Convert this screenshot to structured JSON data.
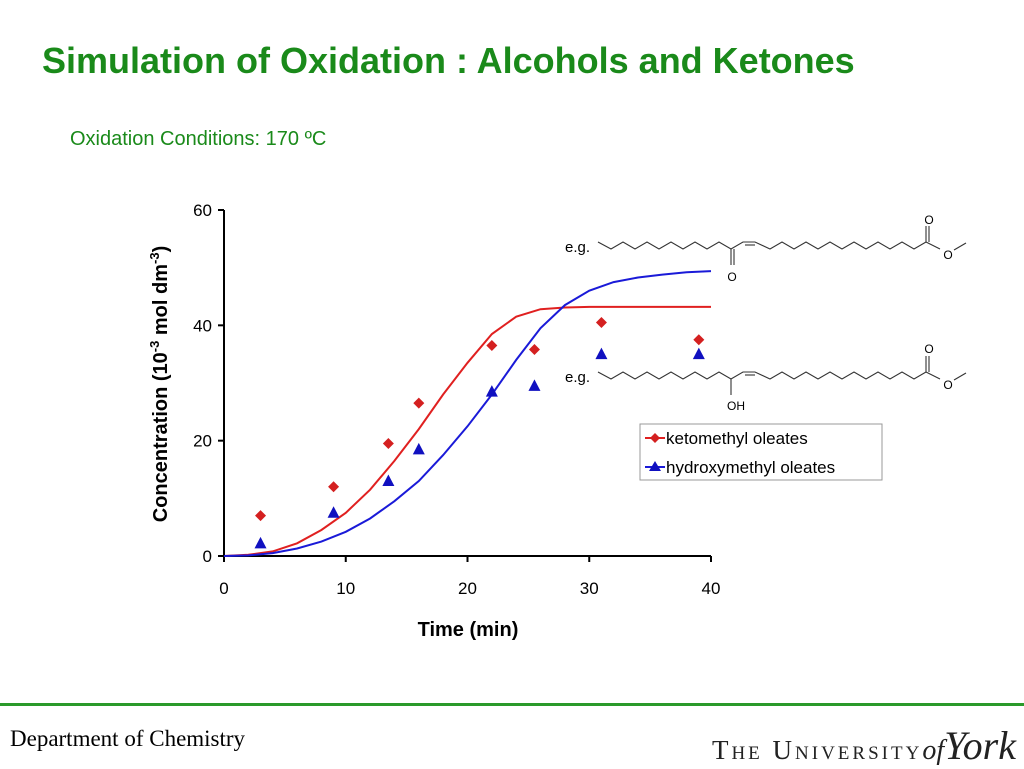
{
  "title": "Simulation of Oxidation : Alcohols and Ketones",
  "subtitle": "Oxidation Conditions: 170 ºC",
  "footer": {
    "department": "Department of Chemistry",
    "university_main": "The University",
    "university_of": "of",
    "university_york": "York"
  },
  "chart_data": {
    "type": "scatter",
    "xlabel": "Time (min)",
    "ylabel": {
      "base": "Concentration (10",
      "exp1": "-3",
      "mid": " mol dm",
      "exp2": "-3",
      "end": ")"
    },
    "xlim": [
      0,
      40
    ],
    "ylim": [
      0,
      60
    ],
    "xticks": [
      0,
      10,
      20,
      30,
      40
    ],
    "yticks": [
      0,
      20,
      40,
      60
    ],
    "grid": false,
    "legend_position": "right",
    "series": [
      {
        "name": "ketomethyl oleates",
        "marker": "diamond",
        "color": "#d42020",
        "points": [
          [
            3,
            7
          ],
          [
            9,
            12
          ],
          [
            13.5,
            19.5
          ],
          [
            16,
            26.5
          ],
          [
            22,
            36.5
          ],
          [
            25.5,
            35.8
          ],
          [
            31,
            40.5
          ],
          [
            39,
            37.5
          ]
        ],
        "curve_color": "#e02020",
        "curve": [
          [
            0,
            0
          ],
          [
            2,
            0.2
          ],
          [
            4,
            0.8
          ],
          [
            6,
            2.2
          ],
          [
            8,
            4.5
          ],
          [
            10,
            7.5
          ],
          [
            12,
            11.5
          ],
          [
            14,
            16.5
          ],
          [
            16,
            22
          ],
          [
            18,
            28
          ],
          [
            20,
            33.5
          ],
          [
            22,
            38.5
          ],
          [
            24,
            41.5
          ],
          [
            26,
            42.8
          ],
          [
            28,
            43.1
          ],
          [
            30,
            43.2
          ],
          [
            32,
            43.2
          ],
          [
            35,
            43.2
          ],
          [
            38,
            43.2
          ],
          [
            40,
            43.2
          ]
        ]
      },
      {
        "name": "hydroxymethyl oleates",
        "marker": "triangle",
        "color": "#1010c0",
        "points": [
          [
            3,
            2.2
          ],
          [
            9,
            7.5
          ],
          [
            13.5,
            13
          ],
          [
            16,
            18.5
          ],
          [
            22,
            28.5
          ],
          [
            25.5,
            29.5
          ],
          [
            31,
            35
          ],
          [
            39,
            35
          ]
        ],
        "curve_color": "#1a1ad8",
        "curve": [
          [
            0,
            0
          ],
          [
            2,
            0.1
          ],
          [
            4,
            0.5
          ],
          [
            6,
            1.3
          ],
          [
            8,
            2.5
          ],
          [
            10,
            4.2
          ],
          [
            12,
            6.5
          ],
          [
            14,
            9.5
          ],
          [
            16,
            13
          ],
          [
            18,
            17.5
          ],
          [
            20,
            22.5
          ],
          [
            22,
            28
          ],
          [
            24,
            34
          ],
          [
            26,
            39.5
          ],
          [
            28,
            43.5
          ],
          [
            30,
            46
          ],
          [
            32,
            47.5
          ],
          [
            34,
            48.3
          ],
          [
            36,
            48.8
          ],
          [
            38,
            49.2
          ],
          [
            40,
            49.4
          ]
        ]
      }
    ],
    "annotations": {
      "eg": "e.g.",
      "ketone_O": "O",
      "ester_O_top": "O",
      "ester_O": "O",
      "alcohol_OH": "OH"
    }
  }
}
